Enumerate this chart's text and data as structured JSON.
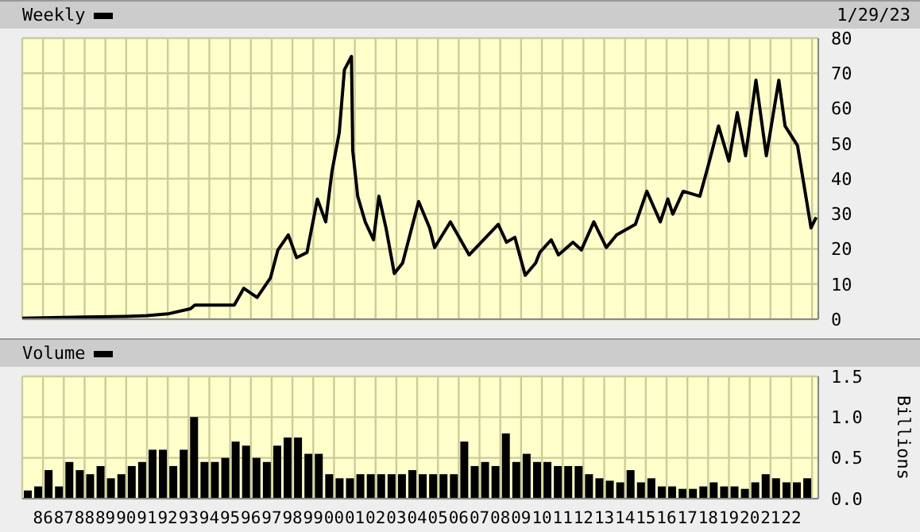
{
  "chart_data": [
    {
      "type": "line",
      "x": [
        1985,
        1987,
        1988,
        1990,
        1991,
        1992,
        1993.1,
        1993.3,
        1995.2,
        1995.66,
        1996.3,
        1996.94,
        1997.3,
        1997.8,
        1998.2,
        1998.7,
        1999.2,
        1999.6,
        1999.9,
        2000.25,
        2000.5,
        2000.84,
        2000.9,
        2001.14,
        2001.5,
        2001.9,
        2002.16,
        2002.5,
        2002.9,
        2003.3,
        2004.07,
        2004.6,
        2004.84,
        2005.6,
        2006.5,
        2007.9,
        2008.3,
        2008.7,
        2009.2,
        2009.7,
        2009.9,
        2010.45,
        2010.8,
        2011.5,
        2011.9,
        2012.5,
        2013.1,
        2013.6,
        2014.5,
        2015.05,
        2015.7,
        2016.06,
        2016.3,
        2016.8,
        2017.6,
        2018,
        2018.5,
        2019,
        2019.4,
        2019.8,
        2020.3,
        2020.8,
        2021.4,
        2021.7,
        2022.3,
        2022.7,
        2022.95,
        2023.2
      ],
      "series": [
        {
          "name": "Weekly",
          "color": "#000000",
          "values": [
            0.3,
            0.5,
            0.6,
            0.8,
            1,
            1.5,
            3,
            4,
            4,
            8.8,
            6.2,
            11.7,
            19.7,
            24,
            17.5,
            19,
            34.2,
            27.7,
            42,
            53,
            71,
            74.8,
            48,
            35,
            27.7,
            22.6,
            35,
            26,
            13,
            16,
            33.5,
            26,
            20.4,
            27.7,
            18.3,
            27,
            21.9,
            23.3,
            12.5,
            16,
            19,
            22.6,
            18.3,
            21.9,
            19.7,
            27.7,
            20.4,
            24,
            27,
            36.4,
            27.7,
            34.2,
            29.9,
            36.4,
            35,
            43.6,
            55,
            45,
            58.8,
            46.5,
            68,
            46.5,
            68,
            55,
            49.4,
            35,
            26,
            29
          ]
        }
      ],
      "xlim": [
        1985,
        2023.3
      ],
      "xticks": [
        {
          "value": 1985,
          "label": null
        },
        {
          "value": 1986,
          "label": null
        },
        {
          "value": 1987,
          "label": null
        },
        {
          "value": 1988,
          "label": null
        },
        {
          "value": 1989,
          "label": null
        },
        {
          "value": 1990,
          "label": null
        },
        {
          "value": 1991,
          "label": null
        },
        {
          "value": 1992,
          "label": null
        },
        {
          "value": 1993,
          "label": null
        },
        {
          "value": 1994,
          "label": null
        },
        {
          "value": 1995,
          "label": null
        },
        {
          "value": 1996,
          "label": null
        },
        {
          "value": 1997,
          "label": null
        },
        {
          "value": 1998,
          "label": null
        },
        {
          "value": 1999,
          "label": null
        },
        {
          "value": 2000,
          "label": null
        },
        {
          "value": 2001,
          "label": null
        },
        {
          "value": 2002,
          "label": null
        },
        {
          "value": 2003,
          "label": null
        },
        {
          "value": 2004,
          "label": null
        },
        {
          "value": 2005,
          "label": null
        },
        {
          "value": 2006,
          "label": null
        },
        {
          "value": 2007,
          "label": null
        },
        {
          "value": 2008,
          "label": null
        },
        {
          "value": 2009,
          "label": null
        },
        {
          "value": 2010,
          "label": null
        },
        {
          "value": 2011,
          "label": null
        },
        {
          "value": 2012,
          "label": null
        },
        {
          "value": 2013,
          "label": null
        },
        {
          "value": 2014,
          "label": null
        },
        {
          "value": 2015,
          "label": null
        },
        {
          "value": 2016,
          "label": null
        },
        {
          "value": 2017,
          "label": null
        },
        {
          "value": 2018,
          "label": null
        },
        {
          "value": 2019,
          "label": null
        },
        {
          "value": 2020,
          "label": null
        },
        {
          "value": 2021,
          "label": null
        },
        {
          "value": 2022,
          "label": null
        },
        {
          "value": 2023,
          "label": null
        }
      ],
      "ylim": [
        0,
        80
      ],
      "yticks": [
        0,
        10,
        20,
        30,
        40,
        50,
        60,
        70,
        80
      ],
      "grid": true,
      "legend": "top left",
      "tick_labels": "y",
      "annotations": [
        "1/29/23"
      ]
    },
    {
      "type": "bar",
      "x": [
        1985.25,
        1985.75,
        1986.25,
        1986.75,
        1987.25,
        1987.75,
        1988.25,
        1988.75,
        1989.25,
        1989.75,
        1990.25,
        1990.75,
        1991.25,
        1991.75,
        1992.25,
        1992.75,
        1993.25,
        1993.75,
        1994.25,
        1994.75,
        1995.25,
        1995.75,
        1996.25,
        1996.75,
        1997.25,
        1997.75,
        1998.25,
        1998.75,
        1999.25,
        1999.75,
        2000.25,
        2000.75,
        2001.25,
        2001.75,
        2002.25,
        2002.75,
        2003.25,
        2003.75,
        2004.25,
        2004.75,
        2005.25,
        2005.75,
        2006.25,
        2006.75,
        2007.25,
        2007.75,
        2008.25,
        2008.75,
        2009.25,
        2009.75,
        2010.25,
        2010.75,
        2011.25,
        2011.75,
        2012.25,
        2012.75,
        2013.25,
        2013.75,
        2014.25,
        2014.75,
        2015.25,
        2015.75,
        2016.25,
        2016.75,
        2017.25,
        2017.75,
        2018.25,
        2018.75,
        2019.25,
        2019.75,
        2020.25,
        2020.75,
        2021.25,
        2021.75,
        2022.25,
        2022.75
      ],
      "series": [
        {
          "name": "Volume",
          "color": "#000000",
          "values": [
            0.1,
            0.15,
            0.35,
            0.15,
            0.45,
            0.35,
            0.3,
            0.4,
            0.25,
            0.3,
            0.4,
            0.45,
            0.6,
            0.6,
            0.4,
            0.6,
            1.0,
            0.45,
            0.45,
            0.5,
            0.7,
            0.65,
            0.5,
            0.45,
            0.65,
            0.75,
            0.75,
            0.55,
            0.55,
            0.3,
            0.25,
            0.25,
            0.3,
            0.3,
            0.3,
            0.3,
            0.3,
            0.35,
            0.3,
            0.3,
            0.3,
            0.3,
            0.7,
            0.4,
            0.45,
            0.4,
            0.8,
            0.45,
            0.55,
            0.45,
            0.45,
            0.4,
            0.4,
            0.4,
            0.3,
            0.25,
            0.22,
            0.2,
            0.35,
            0.2,
            0.25,
            0.15,
            0.15,
            0.12,
            0.12,
            0.15,
            0.2,
            0.15,
            0.15,
            0.12,
            0.2,
            0.3,
            0.25,
            0.2,
            0.2,
            0.25
          ]
        }
      ],
      "xlim": [
        1985,
        2023.3
      ],
      "xticks": [
        {
          "value": 1985,
          "label": null
        },
        {
          "value": 1986,
          "label": "86"
        },
        {
          "value": 1987,
          "label": "87"
        },
        {
          "value": 1988,
          "label": "88"
        },
        {
          "value": 1989,
          "label": "89"
        },
        {
          "value": 1990,
          "label": "90"
        },
        {
          "value": 1991,
          "label": "91"
        },
        {
          "value": 1992,
          "label": "92"
        },
        {
          "value": 1993,
          "label": "93"
        },
        {
          "value": 1994,
          "label": "94"
        },
        {
          "value": 1995,
          "label": "95"
        },
        {
          "value": 1996,
          "label": "96"
        },
        {
          "value": 1997,
          "label": "97"
        },
        {
          "value": 1998,
          "label": "98"
        },
        {
          "value": 1999,
          "label": "99"
        },
        {
          "value": 2000,
          "label": "00"
        },
        {
          "value": 2001,
          "label": "01"
        },
        {
          "value": 2002,
          "label": "02"
        },
        {
          "value": 2003,
          "label": "03"
        },
        {
          "value": 2004,
          "label": "04"
        },
        {
          "value": 2005,
          "label": "05"
        },
        {
          "value": 2006,
          "label": "06"
        },
        {
          "value": 2007,
          "label": "07"
        },
        {
          "value": 2008,
          "label": "08"
        },
        {
          "value": 2009,
          "label": "09"
        },
        {
          "value": 2010,
          "label": "10"
        },
        {
          "value": 2011,
          "label": "11"
        },
        {
          "value": 2012,
          "label": "12"
        },
        {
          "value": 2013,
          "label": "13"
        },
        {
          "value": 2014,
          "label": "14"
        },
        {
          "value": 2015,
          "label": "15"
        },
        {
          "value": 2016,
          "label": "16"
        },
        {
          "value": 2017,
          "label": "17"
        },
        {
          "value": 2018,
          "label": "18"
        },
        {
          "value": 2019,
          "label": "19"
        },
        {
          "value": 2020,
          "label": "20"
        },
        {
          "value": 2021,
          "label": "21"
        },
        {
          "value": 2022,
          "label": "22"
        },
        {
          "value": 2023,
          "label": null
        }
      ],
      "ylim": [
        0,
        1.5
      ],
      "yticks": [
        {
          "value": 0,
          "label": "0.0"
        },
        {
          "value": 0.5,
          "label": "0.5"
        },
        {
          "value": 1,
          "label": "1.0"
        },
        {
          "value": 1.5,
          "label": "1.5"
        }
      ],
      "ylabel": "Billions",
      "grid": true,
      "legend": "top left"
    }
  ]
}
